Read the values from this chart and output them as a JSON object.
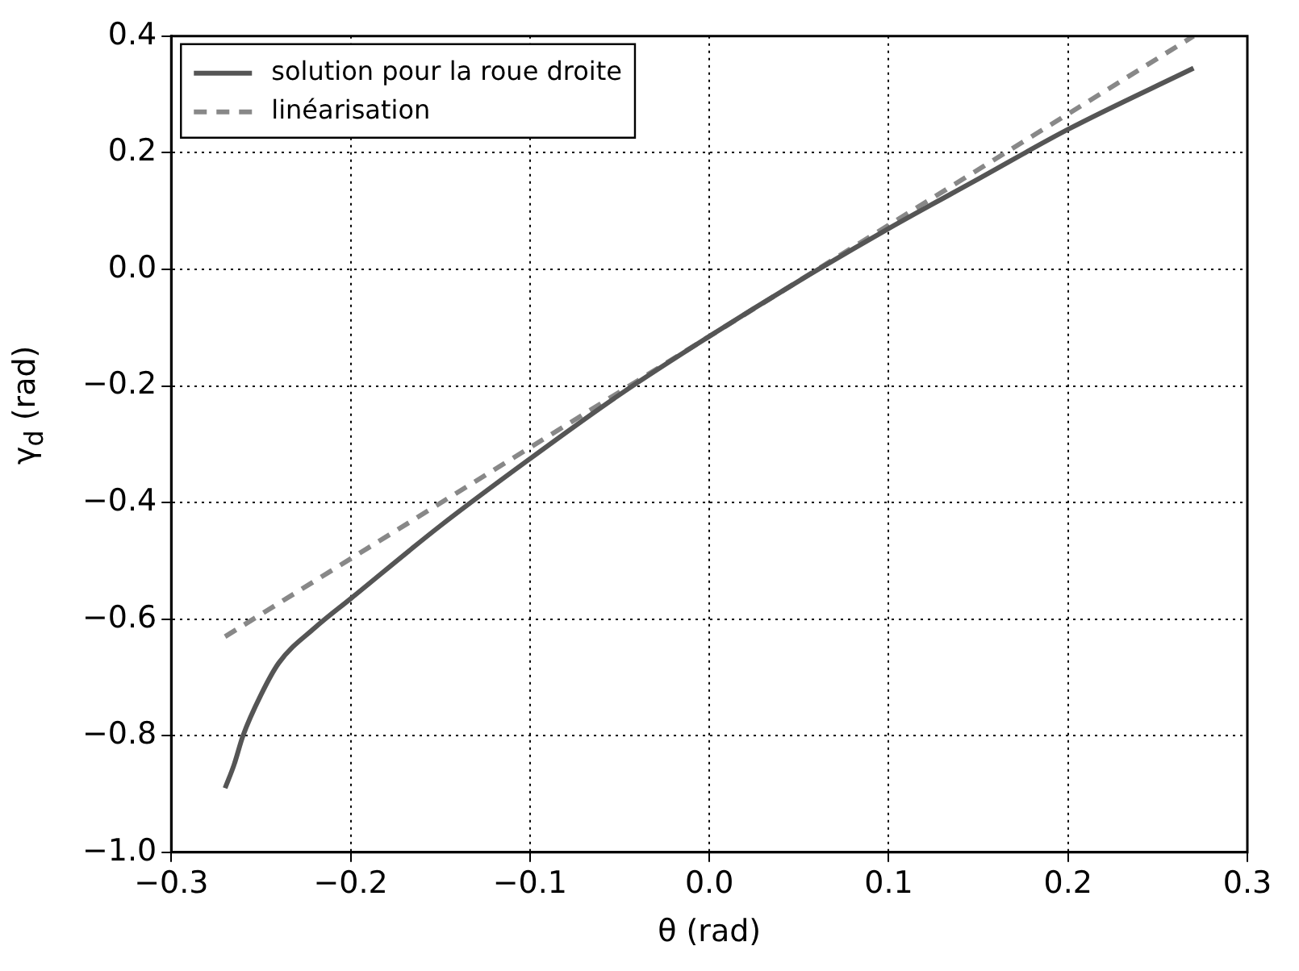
{
  "chart_data": {
    "type": "line",
    "xlabel": "θ (rad)",
    "ylabel": "γ$_{d}$ (rad)",
    "xlim": [
      -0.3,
      0.3
    ],
    "ylim": [
      -1.0,
      0.4
    ],
    "xticks": [
      {
        "value": -0.3,
        "label": "−0.3"
      },
      {
        "value": -0.2,
        "label": "−0.2"
      },
      {
        "value": -0.1,
        "label": "−0.1"
      },
      {
        "value": 0,
        "label": "0.0"
      },
      {
        "value": 0.1,
        "label": "0.1"
      },
      {
        "value": 0.2,
        "label": "0.2"
      },
      {
        "value": 0.3,
        "label": "0.3"
      }
    ],
    "yticks": [
      {
        "value": -1.0,
        "label": "−1.0"
      },
      {
        "value": -0.8,
        "label": "−0.8"
      },
      {
        "value": -0.6,
        "label": "−0.6"
      },
      {
        "value": -0.4,
        "label": "−0.4"
      },
      {
        "value": -0.2,
        "label": "−0.2"
      },
      {
        "value": 0,
        "label": "0.0"
      },
      {
        "value": 0.2,
        "label": "0.2"
      },
      {
        "value": 0.4,
        "label": "0.4"
      }
    ],
    "grid": true,
    "legend": "top left",
    "marker": "none",
    "series": [
      {
        "name": "solution pour la roue droite",
        "color": "#555555",
        "line_style": "solid",
        "x": [
          -0.27,
          -0.265,
          -0.26,
          -0.25,
          -0.24,
          -0.22,
          -0.2,
          -0.15,
          -0.1,
          -0.05,
          0,
          0.05,
          0.1,
          0.15,
          0.2,
          0.27
        ],
        "values": [
          -0.89,
          -0.85,
          -0.8,
          -0.73,
          -0.675,
          -0.615,
          -0.565,
          -0.44,
          -0.325,
          -0.215,
          -0.115,
          -0.02,
          0.07,
          0.155,
          0.24,
          0.345
        ]
      },
      {
        "name": "linéarisation",
        "color": "#888888",
        "line_style": "dashed",
        "x": [
          -0.27,
          0.27
        ],
        "values": [
          -0.63,
          0.4
        ]
      }
    ]
  }
}
